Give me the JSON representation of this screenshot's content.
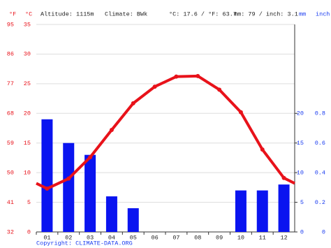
{
  "chart_data": {
    "type": "climate",
    "header": {
      "f_unit": "°F",
      "c_unit": "°C",
      "altitude": "Altitude: 1115m",
      "climate": "Climate: BWk",
      "temp_summary": "°C: 17.6 / °F: 63.7",
      "precip_summary": "mm: 79 / inch: 3.1",
      "mm_unit": "mm",
      "inch_unit": "inch"
    },
    "categories": [
      "01",
      "02",
      "03",
      "04",
      "05",
      "06",
      "07",
      "08",
      "09",
      "10",
      "11",
      "12"
    ],
    "series": [
      {
        "type": "bar",
        "color": "#0a14f0",
        "axis": "y2",
        "values": [
          19,
          15,
          13,
          6,
          4,
          0,
          0,
          0,
          0,
          7,
          7,
          8
        ]
      },
      {
        "type": "line",
        "color": "#e8121a",
        "values": [
          7.3,
          9.0,
          12.6,
          17.2,
          21.7,
          24.5,
          26.2,
          26.3,
          24.0,
          20.2,
          13.9,
          9.1
        ]
      }
    ],
    "ylim": [
      0,
      35
    ],
    "yticks": [
      0,
      5,
      10,
      15,
      20,
      25,
      30,
      35
    ],
    "yticks_f": [
      32,
      41,
      50,
      59,
      68,
      77,
      86,
      95
    ],
    "y2lim": [
      0,
      35
    ],
    "y2ticks": [
      0,
      5,
      10,
      15,
      20
    ],
    "y2ticks_inch": [
      {
        "value": 0,
        "label": "0"
      },
      {
        "value": 5,
        "label": "0.2"
      },
      {
        "value": 10,
        "label": "0.4"
      },
      {
        "value": 15,
        "label": "0.6"
      },
      {
        "value": 20,
        "label": "0.8"
      }
    ],
    "grid": true,
    "copyright": "Copyright: CLIMATE-DATA.ORG"
  }
}
